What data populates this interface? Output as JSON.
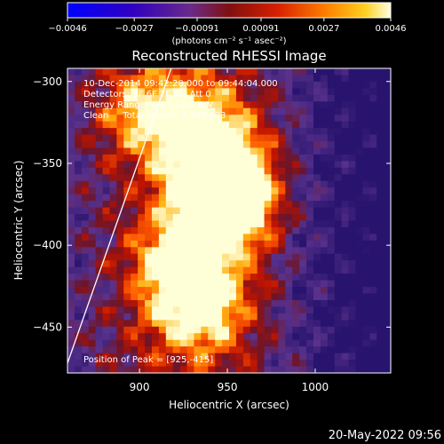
{
  "chart_data": {
    "type": "heatmap",
    "title": "Reconstructed RHESSI Image",
    "xlabel": "Heliocentric X (arcsec)",
    "ylabel": "Heliocentric Y (arcsec)",
    "xlim": [
      859,
      1043
    ],
    "ylim": [
      -478,
      -292
    ],
    "xticks": [
      {
        "value": 900,
        "label": "900"
      },
      {
        "value": 950,
        "label": "950"
      },
      {
        "value": 1000,
        "label": "1000"
      }
    ],
    "yticks": [
      {
        "value": -300,
        "label": "−300"
      },
      {
        "value": -350,
        "label": "−350"
      },
      {
        "value": -400,
        "label": "−400"
      },
      {
        "value": -450,
        "label": "−450"
      }
    ],
    "colorbar": {
      "range": [
        -0.0046,
        0.0046
      ],
      "ticks": [
        {
          "value": -0.0046,
          "label": "−0.0046"
        },
        {
          "value": -0.0027,
          "label": "−0.0027"
        },
        {
          "value": -0.00091,
          "label": "−0.00091"
        },
        {
          "value": 0.00091,
          "label": "0.00091"
        },
        {
          "value": 0.0027,
          "label": "0.0027"
        },
        {
          "value": 0.0046,
          "label": "0.0046"
        }
      ],
      "units": "(photons cm⁻² s⁻¹ asec⁻²)"
    },
    "annotations": [
      "10-Dec-2014 09:42:20.000 to 09:44:04.000",
      "Detectors: 3F 6F 7F 9F, Att 0",
      "Energy Range: 6.0 - 12.0 keV",
      "Clean     Total counts: 7.94E+03"
    ],
    "peak_label": "Position of Peak = [925,-415]",
    "peak": {
      "x": 925,
      "y": -415
    },
    "limb_line": [
      {
        "x": 859,
        "y": -472
      },
      {
        "x": 918,
        "y": -292
      }
    ],
    "emission_sources": [
      {
        "x": 945,
        "y": -360,
        "amp": 1.0
      },
      {
        "x": 950,
        "y": -378,
        "amp": 0.95
      },
      {
        "x": 925,
        "y": -412,
        "amp": 0.82
      },
      {
        "x": 940,
        "y": -330,
        "amp": 0.65
      },
      {
        "x": 935,
        "y": -440,
        "amp": 0.7
      },
      {
        "x": 905,
        "y": -320,
        "amp": 0.65
      }
    ]
  },
  "footer": {
    "timestamp": "20-May-2022 09:56"
  }
}
